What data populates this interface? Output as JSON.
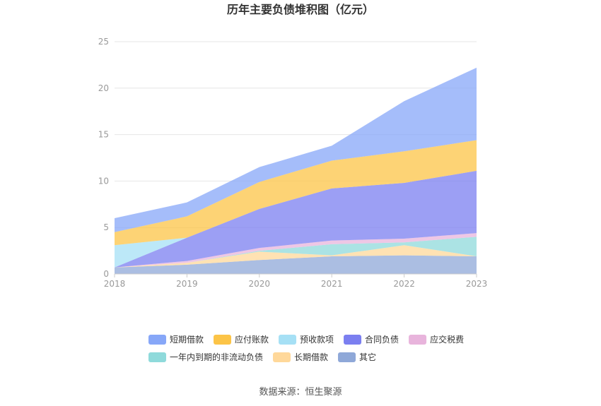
{
  "chart_data": {
    "type": "area",
    "stacked": true,
    "title": "历年主要负债堆积图（亿元）",
    "x": [
      "2018",
      "2019",
      "2020",
      "2021",
      "2022",
      "2023"
    ],
    "ylim": [
      0,
      25
    ],
    "yticks": [
      "0",
      "5",
      "10",
      "15",
      "20",
      "25"
    ],
    "grid": true,
    "legend_position": "bottom",
    "series": [
      {
        "name": "其它",
        "color": "#8fa8d8",
        "values": [
          0.7,
          1.0,
          1.5,
          1.9,
          2.0,
          1.9
        ]
      },
      {
        "name": "长期借款",
        "color": "#ffd89a",
        "values": [
          0.0,
          0.2,
          0.9,
          0.1,
          1.1,
          0.0
        ]
      },
      {
        "name": "一年内到期的非流动负债",
        "color": "#8fdadb",
        "values": [
          0.0,
          0.0,
          0.1,
          1.2,
          0.3,
          2.1
        ]
      },
      {
        "name": "应交税费",
        "color": "#e8b4dc",
        "values": [
          0.0,
          0.2,
          0.3,
          0.4,
          0.4,
          0.4
        ]
      },
      {
        "name": "合同负债",
        "color": "#7b7ff0",
        "values": [
          0.0,
          2.5,
          4.2,
          5.6,
          6.0,
          6.7
        ]
      },
      {
        "name": "预收款项",
        "color": "#a6e0f5",
        "values": [
          2.4,
          0.0,
          0.0,
          0.0,
          0.0,
          0.0
        ]
      },
      {
        "name": "应付账款",
        "color": "#fcc447",
        "values": [
          1.4,
          2.3,
          2.9,
          3.0,
          3.4,
          3.3
        ]
      },
      {
        "name": "短期借款",
        "color": "#87a7f8",
        "values": [
          1.5,
          1.5,
          1.6,
          1.6,
          5.4,
          7.8
        ]
      }
    ],
    "legend_order": [
      "短期借款",
      "应付账款",
      "预收款项",
      "合同负债",
      "应交税费",
      "一年内到期的非流动负债",
      "长期借款",
      "其它"
    ]
  },
  "source": "数据来源：恒生聚源"
}
